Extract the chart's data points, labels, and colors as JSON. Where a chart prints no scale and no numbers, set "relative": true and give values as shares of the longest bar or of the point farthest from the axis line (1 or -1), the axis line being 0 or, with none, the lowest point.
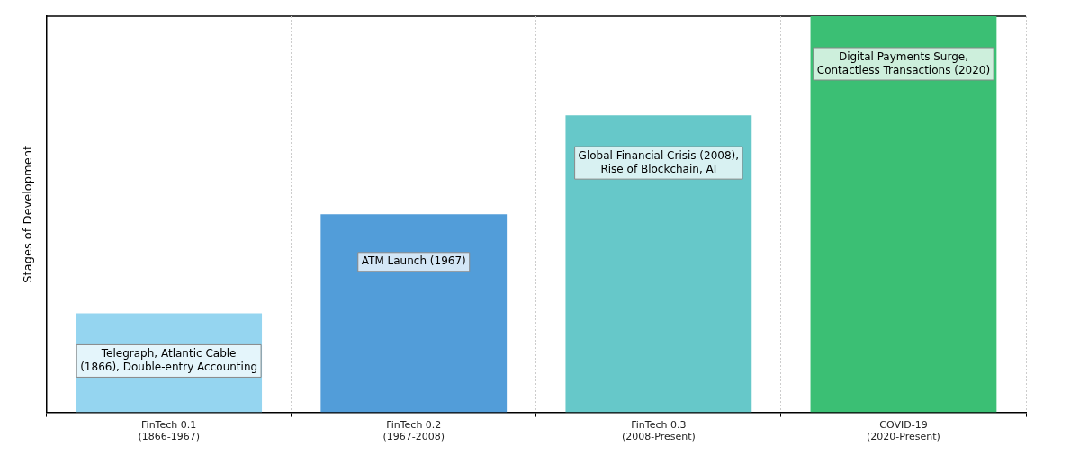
{
  "chart_data": {
    "type": "bar",
    "relative": true,
    "ylabel": "Stages of Development",
    "categories": [
      "FinTech 0.1\n(1866-1967)",
      "FinTech 0.2\n(1967-2008)",
      "FinTech 0.3\n(2008-Present)",
      "COVID-19\n(2020-Present)"
    ],
    "values": [
      0.25,
      0.5,
      0.75,
      1
    ],
    "colors": [
      "#95d5f0",
      "#529dd9",
      "#66c8c9",
      "#3bbf74"
    ],
    "grid": "x",
    "legend": false,
    "annotations": [
      "Telegraph, Atlantic Cable\n(1866), Double-entry Accounting",
      "ATM Launch (1967)",
      "Global Financial Crisis (2008),\nRise of Blockchain, AI",
      "Digital Payments Surge,\nContactless Transactions (2020)"
    ]
  }
}
